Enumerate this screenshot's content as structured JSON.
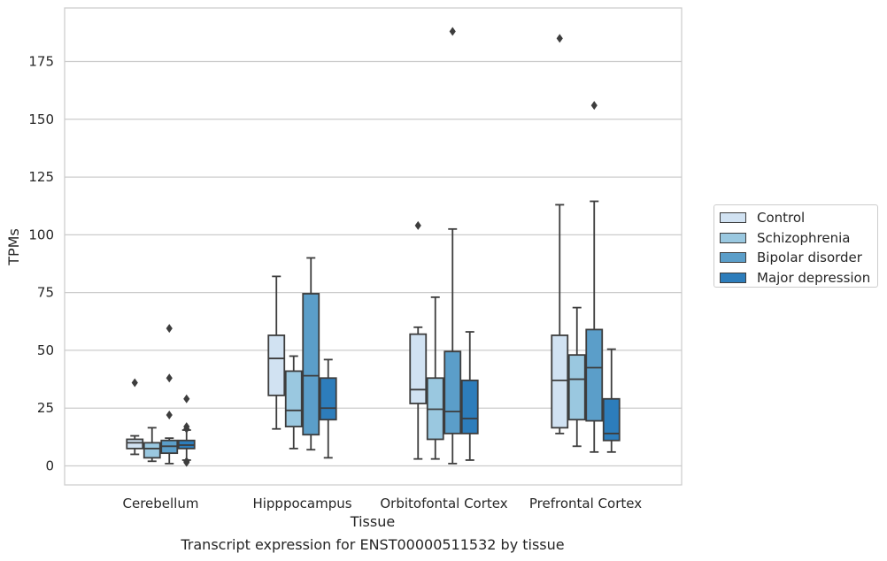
{
  "chart_data": {
    "type": "box",
    "title": "",
    "caption": "Transcript expression for ENST00000511532 by tissue",
    "xlabel": "Tissue",
    "ylabel": "TPMs",
    "ylim": [
      -8,
      198
    ],
    "yticks": [
      0,
      25,
      50,
      75,
      100,
      125,
      150,
      175
    ],
    "grid": "horizontal",
    "legend_position": "right",
    "categories": [
      "Cerebellum",
      "Hipppocampus",
      "Orbitofontal Cortex",
      "Prefrontal Cortex"
    ],
    "series": [
      {
        "name": "Control",
        "color": "#d1e2f2",
        "boxes": [
          {
            "whislo": 5,
            "q1": 7.5,
            "median": 10,
            "q3": 11.5,
            "whishi": 13,
            "fliers": [
              36
            ]
          },
          {
            "whislo": 16,
            "q1": 30.5,
            "median": 46.5,
            "q3": 56.5,
            "whishi": 82,
            "fliers": []
          },
          {
            "whislo": 3,
            "q1": 27,
            "median": 33,
            "q3": 57,
            "whishi": 60,
            "fliers": [
              104
            ]
          },
          {
            "whislo": 14,
            "q1": 16.5,
            "median": 37,
            "q3": 56.5,
            "whishi": 113,
            "fliers": [
              185
            ]
          }
        ]
      },
      {
        "name": "Schizophrenia",
        "color": "#9ac8e0",
        "boxes": [
          {
            "whislo": 2,
            "q1": 3.5,
            "median": 7.5,
            "q3": 10,
            "whishi": 16.5,
            "fliers": []
          },
          {
            "whislo": 7.5,
            "q1": 17,
            "median": 24,
            "q3": 41,
            "whishi": 47.5,
            "fliers": []
          },
          {
            "whislo": 3,
            "q1": 11.5,
            "median": 24.5,
            "q3": 38,
            "whishi": 73,
            "fliers": []
          },
          {
            "whislo": 8.5,
            "q1": 20,
            "median": 37.5,
            "q3": 48,
            "whishi": 68.5,
            "fliers": []
          }
        ]
      },
      {
        "name": "Bipolar disorder",
        "color": "#5b9ec9",
        "boxes": [
          {
            "whislo": 1,
            "q1": 5.5,
            "median": 8.5,
            "q3": 11,
            "whishi": 12,
            "fliers": [
              59.5,
              38,
              22
            ]
          },
          {
            "whislo": 7,
            "q1": 13.5,
            "median": 39,
            "q3": 74.5,
            "whishi": 90,
            "fliers": []
          },
          {
            "whislo": 1,
            "q1": 14,
            "median": 23.5,
            "q3": 49.5,
            "whishi": 102.5,
            "fliers": [
              188
            ]
          },
          {
            "whislo": 6,
            "q1": 19.5,
            "median": 42.5,
            "q3": 59,
            "whishi": 114.5,
            "fliers": [
              156
            ]
          }
        ]
      },
      {
        "name": "Major depression",
        "color": "#2d7dbb",
        "boxes": [
          {
            "whislo": 2.5,
            "q1": 7.5,
            "median": 9,
            "q3": 11,
            "whishi": 15.5,
            "fliers": [
              29,
              17,
              16,
              2,
              1.5
            ]
          },
          {
            "whislo": 3.5,
            "q1": 20,
            "median": 25,
            "q3": 38,
            "whishi": 46,
            "fliers": []
          },
          {
            "whislo": 2.5,
            "q1": 14,
            "median": 20.5,
            "q3": 37,
            "whishi": 58,
            "fliers": []
          },
          {
            "whislo": 6,
            "q1": 11,
            "median": 14,
            "q3": 29,
            "whishi": 50.5,
            "fliers": []
          }
        ]
      }
    ]
  }
}
